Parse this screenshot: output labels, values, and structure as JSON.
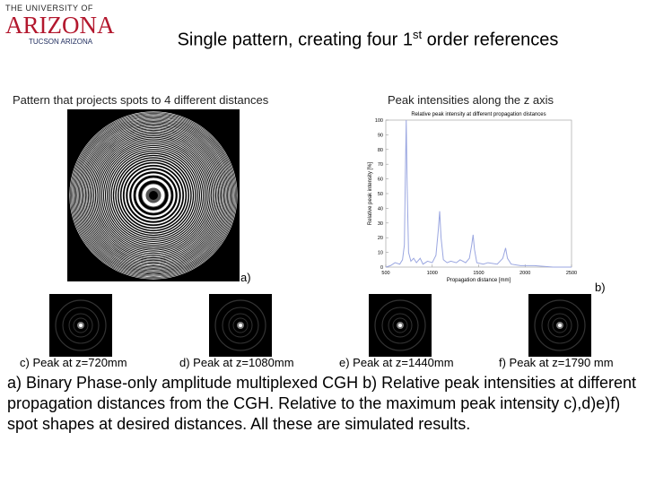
{
  "logo": {
    "line1": "THE UNIVERSITY OF",
    "line2": "ARIZONA",
    "line3": "TUCSON ARIZONA"
  },
  "title": {
    "text_before": "Single pattern, creating four 1",
    "superscript": "st",
    "text_after": " order references"
  },
  "panel_a": {
    "heading": "Pattern that projects spots to 4 different distances",
    "label": "a)"
  },
  "panel_b": {
    "heading": "Peak intensities along the z axis",
    "label": "b)",
    "chart": {
      "type": "line",
      "title": "Relative peak intensity at different propagation distances",
      "x_label": "Propagation distance [mm]",
      "y_label": "Relative peak intensity [%]",
      "color": "#9aa6e0",
      "xlim": [
        500,
        2500
      ],
      "ylim": [
        0,
        100
      ],
      "xticks": [
        500,
        1000,
        1500,
        2000,
        2500
      ],
      "yticks": [
        0,
        10,
        20,
        30,
        40,
        50,
        60,
        70,
        80,
        90,
        100
      ],
      "x": [
        500,
        550,
        600,
        650,
        680,
        700,
        710,
        720,
        730,
        745,
        770,
        800,
        830,
        870,
        900,
        950,
        1000,
        1040,
        1065,
        1080,
        1095,
        1120,
        1160,
        1200,
        1260,
        1300,
        1360,
        1400,
        1425,
        1440,
        1455,
        1480,
        1550,
        1600,
        1700,
        1760,
        1790,
        1810,
        1850,
        1950,
        2100,
        2300,
        2500
      ],
      "values": [
        0,
        1,
        3,
        2,
        5,
        15,
        60,
        100,
        55,
        10,
        4,
        6,
        3,
        6,
        2,
        4,
        3,
        8,
        25,
        38,
        20,
        5,
        3,
        4,
        3,
        5,
        3,
        6,
        15,
        22,
        12,
        3,
        2,
        3,
        2,
        6,
        13,
        6,
        2,
        1,
        1,
        0,
        0
      ]
    }
  },
  "spots": [
    {
      "label": "c) Peak at z=720mm"
    },
    {
      "label": "d) Peak at z=1080mm"
    },
    {
      "label": "e) Peak at z=1440mm"
    },
    {
      "label": "f) Peak at z=1790 mm"
    }
  ],
  "caption": "a) Binary Phase-only amplitude multiplexed CGH b) Relative peak intensities at different propagation distances from the CGH. Relative to the maximum peak intensity c),d)e)f) spot shapes at desired distances. All these are simulated results."
}
